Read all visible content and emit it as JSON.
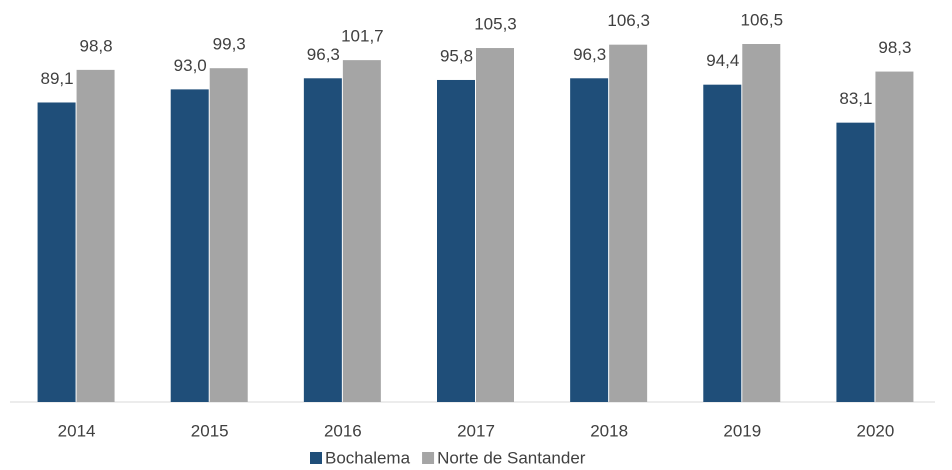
{
  "chart_data": {
    "type": "bar",
    "categories": [
      "2014",
      "2015",
      "2016",
      "2017",
      "2018",
      "2019",
      "2020"
    ],
    "series": [
      {
        "name": "Bochalema",
        "color": "#1f4e79",
        "values": [
          89.1,
          93.0,
          96.3,
          95.8,
          96.3,
          94.4,
          83.1
        ],
        "value_labels": [
          "89,1",
          "93,0",
          "96,3",
          "95,8",
          "96,3",
          "94,4",
          "83,1"
        ]
      },
      {
        "name": "Norte de Santander",
        "color": "#a5a5a5",
        "values": [
          98.8,
          99.3,
          101.7,
          105.3,
          106.3,
          106.5,
          98.3
        ],
        "value_labels": [
          "98,8",
          "99,3",
          "101,7",
          "105,3",
          "106,3",
          "106,5",
          "98,3"
        ]
      }
    ],
    "legend": "bottom"
  }
}
